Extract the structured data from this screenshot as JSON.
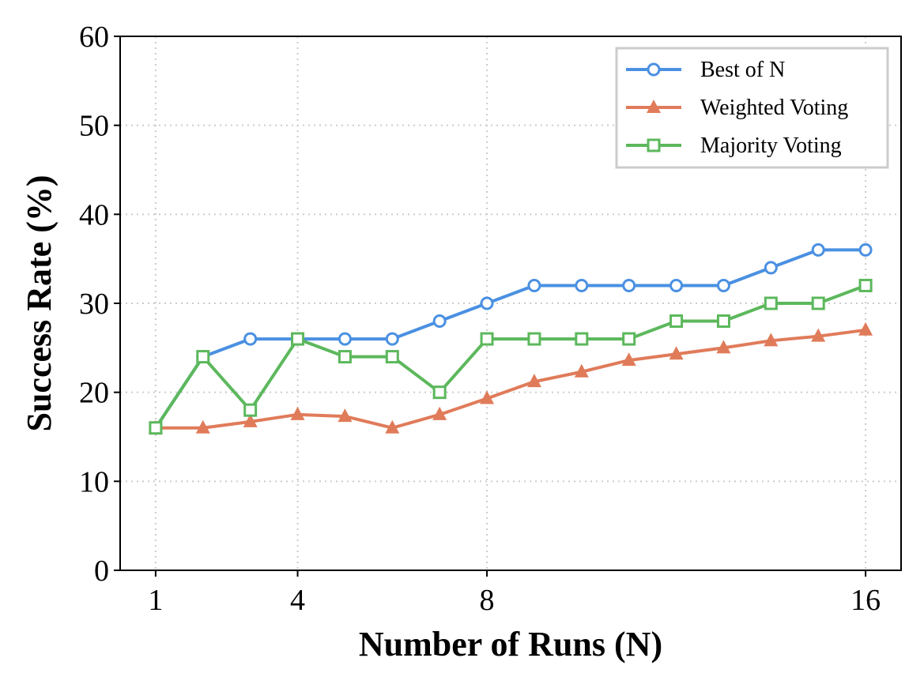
{
  "chart_data": {
    "type": "line",
    "title": "",
    "xlabel": "Number of Runs (N)",
    "ylabel": "Success Rate (%)",
    "xlim": [
      0.25,
      16.75
    ],
    "ylim": [
      0,
      60
    ],
    "xticks": [
      1,
      4,
      8,
      16
    ],
    "yticks": [
      0,
      10,
      20,
      30,
      40,
      50,
      60
    ],
    "grid": true,
    "legend_position": "top-right",
    "x": [
      1,
      2,
      3,
      4,
      5,
      6,
      7,
      8,
      9,
      10,
      11,
      12,
      13,
      14,
      15,
      16
    ],
    "series": [
      {
        "name": "Best of N",
        "color": "#4a90e2",
        "marker": "circle-open",
        "values": [
          16,
          24,
          26,
          26,
          26,
          26,
          28,
          30,
          32,
          32,
          32,
          32,
          32,
          34,
          36,
          36
        ]
      },
      {
        "name": "Weighted Voting",
        "color": "#e07b5a",
        "marker": "triangle-filled",
        "values": [
          16,
          16,
          16.7,
          17.5,
          17.3,
          16,
          17.5,
          19.3,
          21.2,
          22.3,
          23.6,
          24.3,
          25,
          25.8,
          26.3,
          27
        ]
      },
      {
        "name": "Majority Voting",
        "color": "#5cb85c",
        "marker": "square-open",
        "values": [
          16,
          24,
          18,
          26,
          24,
          24,
          20,
          26,
          26,
          26,
          26,
          28,
          28,
          30,
          30,
          32
        ]
      }
    ]
  }
}
